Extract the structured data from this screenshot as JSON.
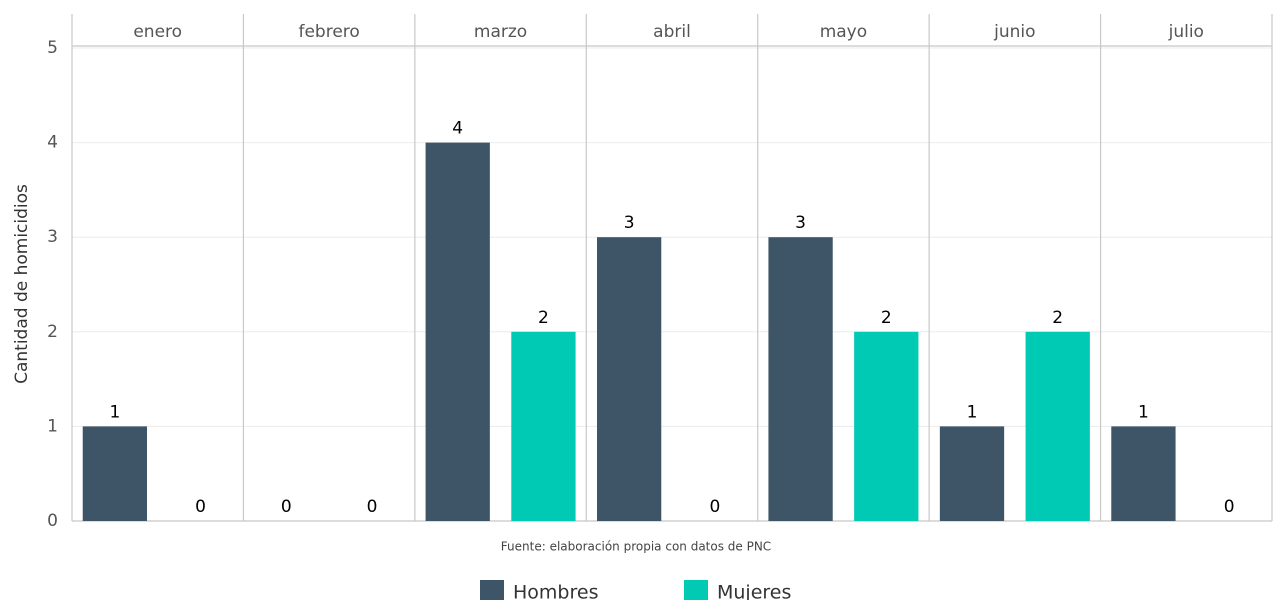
{
  "chart_data": {
    "type": "bar",
    "ylabel": "Cantidad de homicidios",
    "caption": "Fuente: elaboración propia con datos de PNC",
    "categories": [
      "enero",
      "febrero",
      "marzo",
      "abril",
      "mayo",
      "junio",
      "julio"
    ],
    "series": [
      {
        "name": "Hombres",
        "color": "#3d5567",
        "values": [
          1,
          0,
          4,
          3,
          3,
          1,
          1
        ]
      },
      {
        "name": "Mujeres",
        "color": "#00c9b4",
        "values": [
          0,
          0,
          2,
          0,
          2,
          2,
          0
        ]
      }
    ],
    "ylim": [
      0,
      5
    ],
    "yticks": [
      0,
      1,
      2,
      3,
      4,
      5
    ],
    "grid": true,
    "legend": "bottom"
  }
}
